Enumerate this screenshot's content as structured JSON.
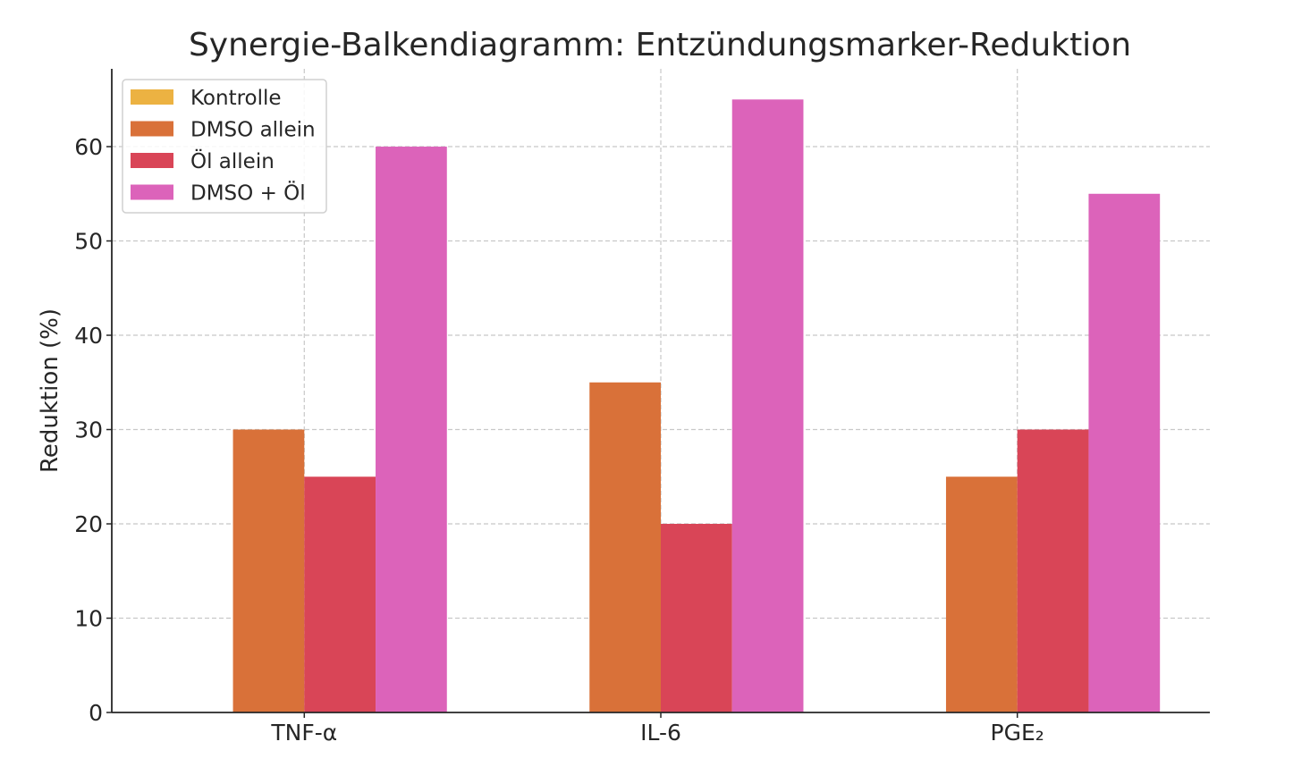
{
  "chart_data": {
    "type": "bar",
    "title": "Synergie-Balkendiagramm: Entzündungsmarker-Reduktion",
    "xlabel": "",
    "ylabel": "Reduktion (%)",
    "categories": [
      "TNF-α",
      "IL-6",
      "PGE₂"
    ],
    "series": [
      {
        "name": "Kontrolle",
        "values": [
          0,
          0,
          0
        ],
        "color": "#ECB242"
      },
      {
        "name": "DMSO allein",
        "values": [
          30,
          35,
          25
        ],
        "color": "#D97139"
      },
      {
        "name": "Öl allein",
        "values": [
          25,
          20,
          30
        ],
        "color": "#D94557"
      },
      {
        "name": "DMSO + Öl",
        "values": [
          60,
          65,
          55
        ],
        "color": "#DC63BA"
      }
    ],
    "ylim": [
      0,
      68.25
    ],
    "yticks": [
      0,
      10,
      20,
      30,
      40,
      50,
      60
    ],
    "grid": true,
    "legend_position": "top-left"
  }
}
